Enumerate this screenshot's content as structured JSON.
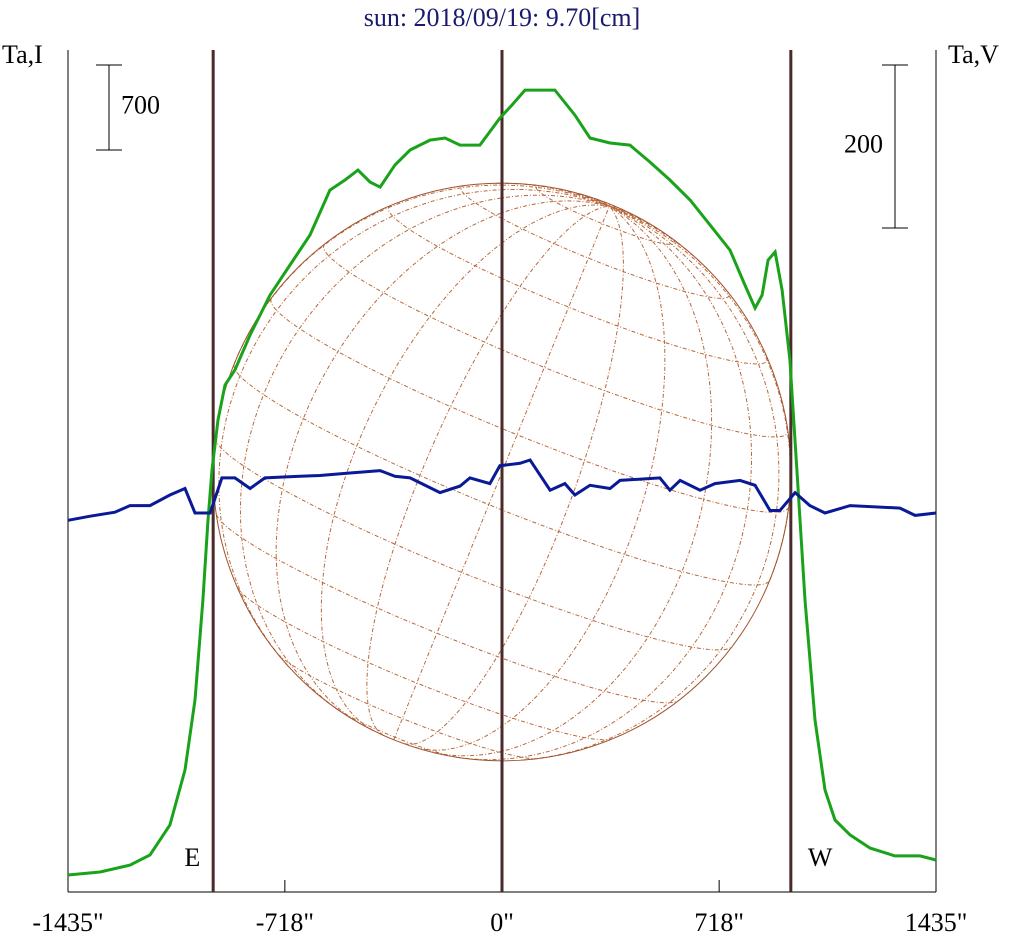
{
  "chart_data": {
    "type": "line",
    "title": "sun: 2018/09/19: 9.70[cm]",
    "ylabel": "Ta,I",
    "y2label": "Ta,V",
    "xlim": [
      -1435,
      1435
    ],
    "xticks": [
      {
        "value": -1435,
        "label": "-1435\""
      },
      {
        "value": -718,
        "label": "-718\""
      },
      {
        "value": 0,
        "label": "0\""
      },
      {
        "value": 718,
        "label": "718\""
      },
      {
        "value": 1435,
        "label": "1435\""
      }
    ],
    "ylim": [
      0,
      6936
    ],
    "y2lim": [
      -456,
      577
    ],
    "scale_bars": [
      {
        "value": 700,
        "axis": "y"
      },
      {
        "value": 200,
        "axis": "y2"
      }
    ],
    "vlines": [
      -955,
      0,
      955
    ],
    "vline_color": "#4a2a2a",
    "annotations": [
      {
        "text": "E",
        "x": -1024
      },
      {
        "text": "W",
        "x": 1052
      }
    ],
    "series": [
      {
        "name": "I",
        "color": "#1aa31a",
        "x": [
          -1435,
          -1329,
          -1230,
          -1164,
          -1098,
          -1048,
          -1015,
          -989,
          -972,
          -959,
          -939,
          -916,
          -883,
          -833,
          -767,
          -701,
          -635,
          -569,
          -519,
          -476,
          -436,
          -403,
          -354,
          -304,
          -238,
          -188,
          -139,
          -73,
          -7,
          33,
          76,
          175,
          241,
          291,
          357,
          423,
          489,
          555,
          622,
          688,
          754,
          803,
          837,
          860,
          880,
          903,
          926,
          952,
          975,
          1002,
          1035,
          1068,
          1101,
          1151,
          1217,
          1299,
          1382,
          1435
        ],
        "values": [
          140,
          165,
          222,
          305,
          552,
          1005,
          1582,
          2405,
          3064,
          3476,
          3888,
          4176,
          4300,
          4588,
          4917,
          5165,
          5412,
          5782,
          5865,
          5947,
          5848,
          5807,
          5988,
          6112,
          6194,
          6211,
          6153,
          6153,
          6375,
          6483,
          6606,
          6606,
          6400,
          6211,
          6170,
          6153,
          6013,
          5865,
          5700,
          5494,
          5288,
          5000,
          4810,
          4917,
          5206,
          5272,
          4959,
          4382,
          3476,
          2405,
          1417,
          840,
          593,
          470,
          362,
          297,
          297,
          264
        ]
      },
      {
        "name": "V",
        "color": "#0a1a96",
        "axis": "y2",
        "x": [
          -1435,
          -1362,
          -1280,
          -1230,
          -1164,
          -1098,
          -1048,
          -1015,
          -965,
          -926,
          -883,
          -833,
          -784,
          -668,
          -602,
          -503,
          -403,
          -354,
          -304,
          -205,
          -139,
          -106,
          -40,
          -7,
          60,
          93,
          159,
          208,
          241,
          291,
          357,
          390,
          522,
          555,
          589,
          655,
          704,
          787,
          837,
          886,
          919,
          969,
          1018,
          1068,
          1151,
          1316,
          1366,
          1435
        ],
        "values": [
          0,
          5,
          10,
          18,
          18,
          31,
          39,
          9,
          9,
          52,
          52,
          39,
          52,
          54,
          55,
          58,
          61,
          54,
          52,
          34,
          42,
          52,
          45,
          67,
          70,
          74,
          37,
          45,
          31,
          43,
          39,
          49,
          52,
          37,
          49,
          37,
          45,
          49,
          43,
          12,
          12,
          34,
          18,
          9,
          18,
          15,
          6,
          9
        ]
      }
    ]
  }
}
